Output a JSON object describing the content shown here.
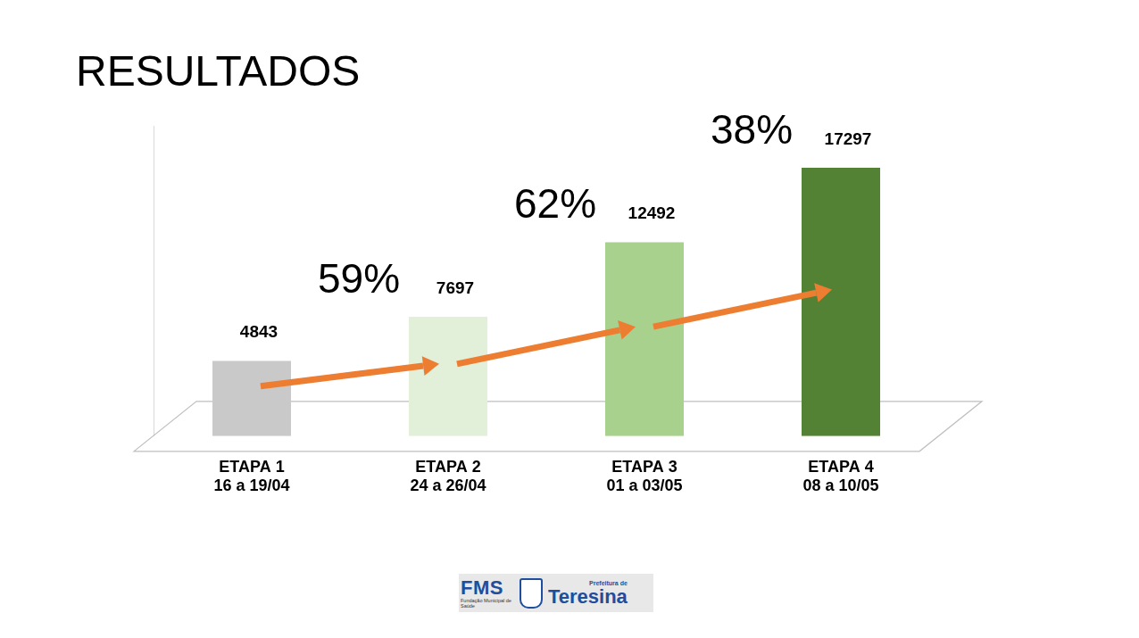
{
  "chart_data": {
    "type": "bar",
    "title": "RESULTADOS",
    "categories": [
      [
        "ETAPA 1",
        "16 a 19/04"
      ],
      [
        "ETAPA 2",
        "24 a 26/04"
      ],
      [
        "ETAPA 3",
        "01 a 03/05"
      ],
      [
        "ETAPA 4",
        "08 a 10/05"
      ]
    ],
    "values": [
      4843,
      7697,
      12492,
      17297
    ],
    "colors": [
      "#c9c9c9",
      "#e2efd9",
      "#a9d18e",
      "#548235"
    ],
    "ylim": [
      0,
      20000
    ],
    "grid": false,
    "data_labels": true,
    "tick_labels": "x",
    "annotations": [
      "59%",
      "62%",
      "38%"
    ]
  },
  "logo": {
    "acronym": "FMS",
    "name": "Fundação Municipal de Saúde",
    "prefix": "Prefeitura de",
    "city": "Teresina"
  }
}
